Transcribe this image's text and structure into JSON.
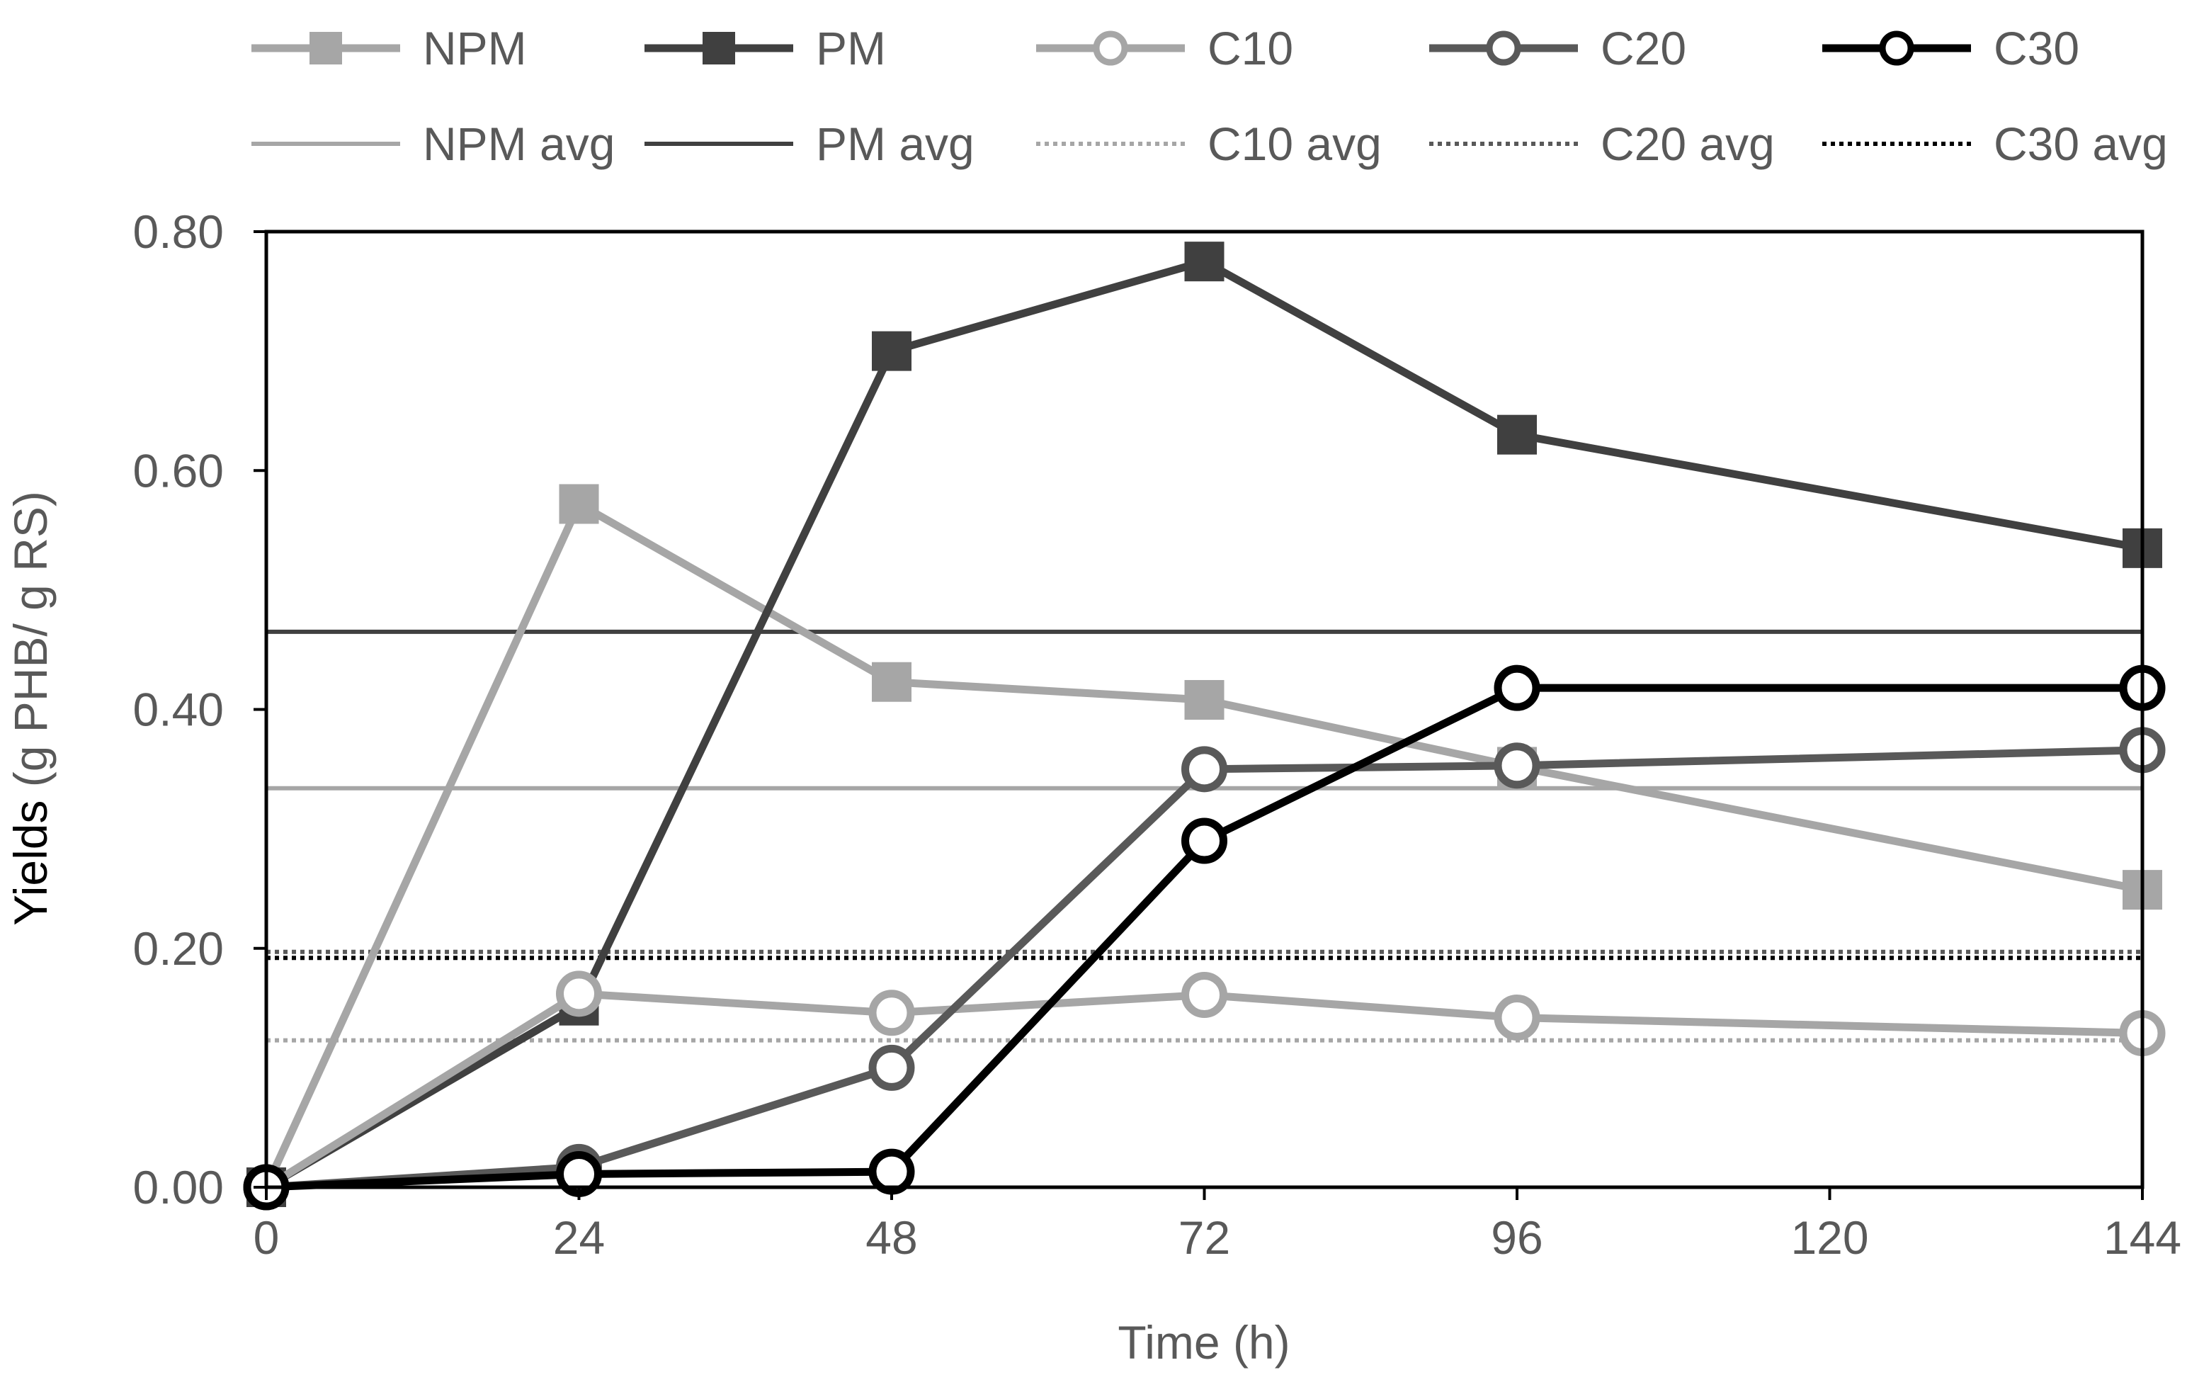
{
  "chart_data": {
    "type": "line",
    "title": "",
    "xlabel": "Time (h)",
    "ylabel_main": "Yields",
    "ylabel_unit": " (g PHB/ g RS)",
    "xlim": [
      0,
      144
    ],
    "ylim": [
      0,
      0.8
    ],
    "x_ticks": [
      0,
      24,
      48,
      72,
      96,
      120,
      144
    ],
    "x_tick_labels": [
      "0",
      "24",
      "48",
      "72",
      "96",
      "120",
      "144"
    ],
    "y_ticks": [
      0,
      0.2,
      0.4,
      0.6,
      0.8
    ],
    "y_tick_labels": [
      "0.00",
      "0.20",
      "0.40",
      "0.60",
      "0.80"
    ],
    "grid": false,
    "legend_position": "top",
    "x": [
      0,
      24,
      48,
      72,
      96,
      144
    ],
    "series": [
      {
        "name": "NPM",
        "values": [
          0.0,
          0.572,
          0.423,
          0.408,
          0.352,
          0.249
        ],
        "color": "#a6a6a6",
        "marker": "square",
        "style": "solid"
      },
      {
        "name": "PM",
        "values": [
          0.0,
          0.152,
          0.7,
          0.775,
          0.63,
          0.535
        ],
        "color": "#404040",
        "marker": "square",
        "style": "solid"
      },
      {
        "name": "C10",
        "values": [
          0.0,
          0.162,
          0.146,
          0.161,
          0.142,
          0.129
        ],
        "color": "#a6a6a6",
        "marker": "circle",
        "style": "solid"
      },
      {
        "name": "C20",
        "values": [
          0.0,
          0.017,
          0.1,
          0.35,
          0.353,
          0.366
        ],
        "color": "#595959",
        "marker": "circle",
        "style": "solid"
      },
      {
        "name": "C30",
        "values": [
          0.0,
          0.011,
          0.013,
          0.29,
          0.418,
          0.418
        ],
        "color": "#000000",
        "marker": "circle",
        "style": "solid"
      }
    ],
    "averages": [
      {
        "name": "NPM avg",
        "value": 0.334,
        "color": "#a6a6a6",
        "style": "solid"
      },
      {
        "name": "PM avg",
        "value": 0.465,
        "color": "#404040",
        "style": "solid"
      },
      {
        "name": "C10 avg",
        "value": 0.123,
        "color": "#a6a6a6",
        "style": "dotted"
      },
      {
        "name": "C20 avg",
        "value": 0.197,
        "color": "#595959",
        "style": "dotted"
      },
      {
        "name": "C30 avg",
        "value": 0.192,
        "color": "#000000",
        "style": "dotted"
      }
    ]
  }
}
